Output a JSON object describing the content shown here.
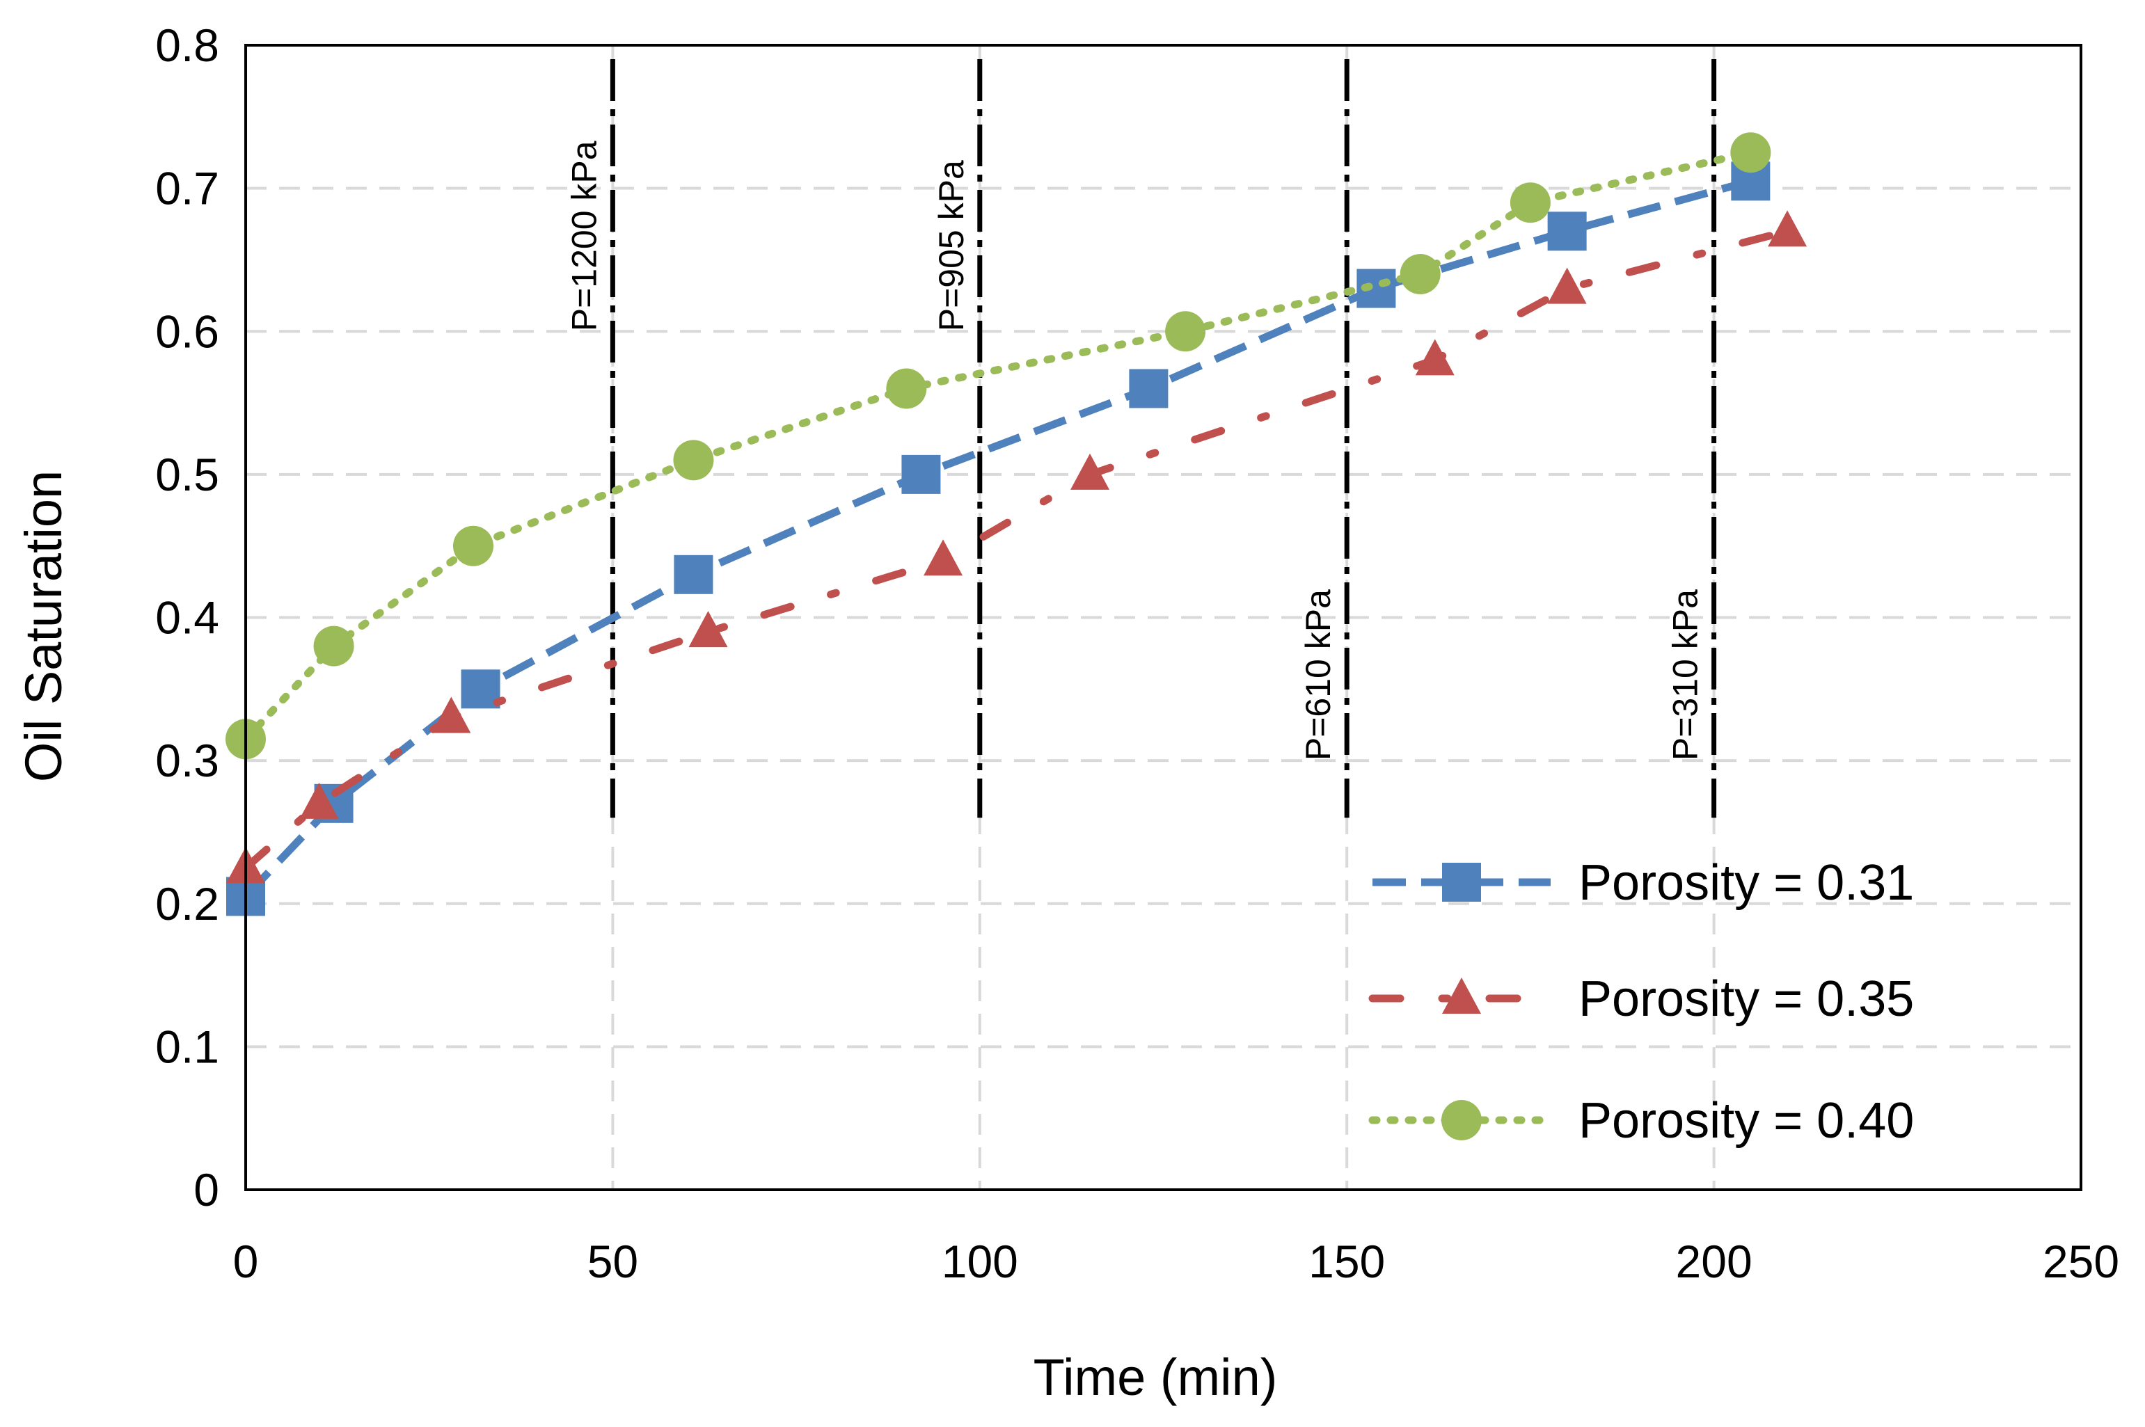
{
  "chart_data": {
    "type": "line",
    "title": "",
    "xlabel": "Time (min)",
    "ylabel": "Oil Saturation",
    "xlim": [
      0,
      250
    ],
    "ylim": [
      0,
      0.8
    ],
    "xticks": [
      0,
      50,
      100,
      150,
      200,
      250
    ],
    "yticks": [
      0,
      0.1,
      0.2,
      0.3,
      0.4,
      0.5,
      0.6,
      0.7,
      0.8
    ],
    "xtick_labels": [
      "0",
      "50",
      "100",
      "150",
      "200",
      "250"
    ],
    "ytick_labels": [
      "0",
      "0.1",
      "0.2",
      "0.3",
      "0.4",
      "0.5",
      "0.6",
      "0.7",
      "0.8"
    ],
    "grid": "horizontal dashed",
    "legend_position": "bottom-right",
    "series": [
      {
        "name": "Porosity = 0.31",
        "color": "#4f81bd",
        "marker": "square",
        "line_style": "dashed",
        "x": [
          0,
          12,
          32,
          61,
          92,
          123,
          154,
          180,
          205
        ],
        "y": [
          0.205,
          0.27,
          0.35,
          0.43,
          0.5,
          0.56,
          0.63,
          0.67,
          0.705
        ]
      },
      {
        "name": "Porosity = 0.35",
        "color": "#c0504d",
        "marker": "triangle",
        "line_style": "dash-dot",
        "x": [
          0,
          10,
          28,
          63,
          95,
          115,
          162,
          180,
          210
        ],
        "y": [
          0.225,
          0.27,
          0.33,
          0.39,
          0.44,
          0.5,
          0.58,
          0.63,
          0.67
        ]
      },
      {
        "name": "Porosity = 0.40",
        "color": "#9bbb59",
        "marker": "circle",
        "line_style": "dotted",
        "x": [
          0,
          12,
          31,
          61,
          90,
          128,
          160,
          175,
          205
        ],
        "y": [
          0.315,
          0.38,
          0.45,
          0.51,
          0.56,
          0.6,
          0.64,
          0.69,
          0.725
        ]
      }
    ],
    "pressure_markers": [
      {
        "x": 50,
        "label": "P=1200 kPa"
      },
      {
        "x": 100,
        "label": "P=905 kPa"
      },
      {
        "x": 150,
        "label": "P=610 kPa"
      },
      {
        "x": 200,
        "label": "P=310 kPa"
      }
    ]
  }
}
